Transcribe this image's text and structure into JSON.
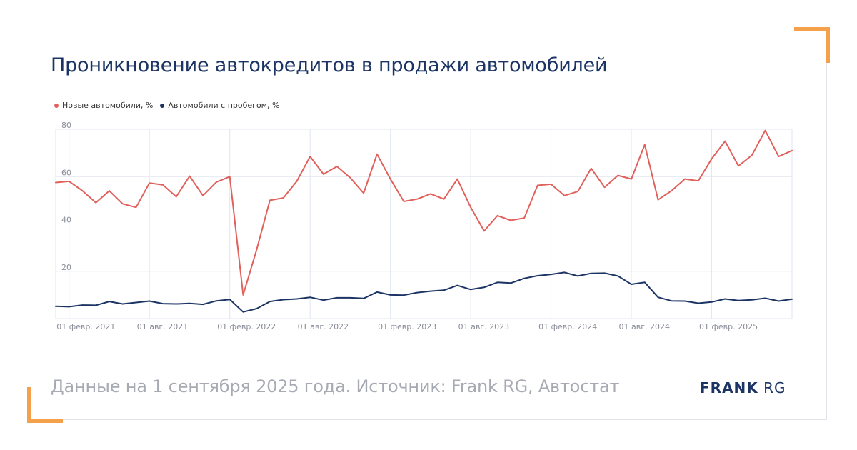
{
  "chart_data": {
    "type": "line",
    "title": "Проникновение автокредитов в продажи автомобилей",
    "ylim": [
      0,
      80
    ],
    "yticks": [
      20,
      40,
      60,
      80
    ],
    "grid": true,
    "legend_position": "top-left",
    "x_start": "2021-01",
    "x_end": "2025-08",
    "x_tick_labels": [
      "01 февр. 2021",
      "01 авг. 2021",
      "01 февр. 2022",
      "01 авг. 2022",
      "01 февр. 2023",
      "01 авг. 2023",
      "01 февр. 2024",
      "01 авг. 2024",
      "01 февр. 2025"
    ],
    "series": [
      {
        "name": "Новые автомобили, %",
        "color": "#e0605b",
        "values": [
          57.5,
          58,
          54,
          49,
          54,
          48.5,
          47,
          57.3,
          56.5,
          51.5,
          60.2,
          52,
          57.7,
          60,
          10,
          29,
          50,
          51,
          58,
          68.5,
          61,
          64.3,
          59.5,
          53,
          69.5,
          59,
          49.5,
          50.5,
          52.7,
          50.5,
          59,
          47,
          37,
          43.5,
          41.5,
          42.5,
          56.3,
          56.8,
          52,
          53.7,
          63.5,
          55.5,
          60.5,
          59,
          73.5,
          50.2,
          54,
          59,
          58.2,
          67.5,
          75,
          64.5,
          69,
          79.5,
          68.5,
          71
        ]
      },
      {
        "name": "Автомобили с пробегом, %",
        "color": "#1c3464",
        "values": [
          5.2,
          5,
          5.7,
          5.6,
          7.2,
          6.2,
          6.8,
          7.4,
          6.3,
          6.2,
          6.4,
          6,
          7.5,
          8.1,
          2.8,
          4.2,
          7.2,
          8,
          8.3,
          9,
          7.8,
          8.8,
          8.8,
          8.5,
          11.2,
          10,
          9.9,
          11,
          11.6,
          12,
          14,
          12.3,
          13.2,
          15.3,
          15,
          17,
          18.1,
          18.7,
          19.5,
          18,
          19.1,
          19.2,
          18,
          14.5,
          15.3,
          9,
          7.5,
          7.4,
          6.5,
          7,
          8.3,
          7.6,
          7.9,
          8.6,
          7.4,
          8.2
        ]
      }
    ]
  },
  "source_note": "Данные на 1 сентября 2025 года. Источник: Frank RG, Автостат",
  "logo": {
    "bold": "FRANK",
    "light": " RG"
  },
  "colors": {
    "accent": "#f5a04a",
    "title": "#1c3464",
    "grid": "#e3e6f0",
    "axis_text": "#8a8d99"
  }
}
